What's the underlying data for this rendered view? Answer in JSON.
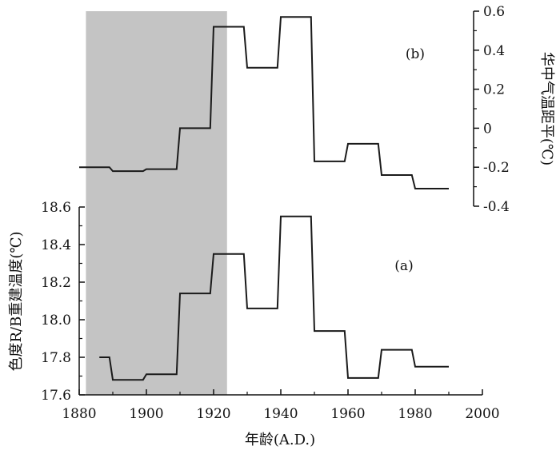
{
  "chart_data": [
    {
      "panel": "(b)",
      "type": "line",
      "step": true,
      "ylabel": "华中气温距平(℃)",
      "ylim": [
        -0.4,
        0.6
      ],
      "yticks": [
        "0.6",
        "0.4",
        "0.2",
        "0",
        "-0.2",
        "-0.4"
      ],
      "x": [
        1880,
        1889,
        1890,
        1899,
        1900,
        1909,
        1910,
        1919,
        1920,
        1929,
        1930,
        1939,
        1940,
        1949,
        1950,
        1959,
        1960,
        1969,
        1970,
        1979,
        1980,
        1990
      ],
      "y": [
        -0.2,
        -0.2,
        -0.22,
        -0.22,
        -0.21,
        -0.21,
        0.0,
        0.0,
        0.52,
        0.52,
        0.31,
        0.31,
        0.57,
        0.57,
        -0.17,
        -0.17,
        -0.08,
        -0.08,
        -0.24,
        -0.24,
        -0.31,
        -0.31
      ]
    },
    {
      "panel": "(a)",
      "type": "line",
      "step": true,
      "ylabel": "色度R/B重建温度(℃)",
      "xlabel": "年龄(A.D.)",
      "ylim": [
        17.6,
        18.6
      ],
      "xlim": [
        1880,
        2000
      ],
      "yticks": [
        "17.6",
        "17.8",
        "18.0",
        "18.2",
        "18.4",
        "18.6"
      ],
      "xticks": [
        "1880",
        "1900",
        "1920",
        "1940",
        "1960",
        "1980",
        "2000"
      ],
      "x": [
        1886,
        1889,
        1890,
        1899,
        1900,
        1909,
        1910,
        1919,
        1920,
        1929,
        1930,
        1939,
        1940,
        1949,
        1950,
        1959,
        1960,
        1969,
        1970,
        1979,
        1980,
        1990
      ],
      "y": [
        17.8,
        17.8,
        17.68,
        17.68,
        17.71,
        17.71,
        18.14,
        18.14,
        18.35,
        18.35,
        18.06,
        18.06,
        18.55,
        18.55,
        17.94,
        17.94,
        17.69,
        17.69,
        17.84,
        17.84,
        17.75,
        17.75
      ]
    }
  ],
  "shaded_period": [
    1882,
    1924
  ],
  "colors": {
    "shade": "#c4c4c4",
    "line": "#1a1a1a",
    "axis": "#111111"
  }
}
